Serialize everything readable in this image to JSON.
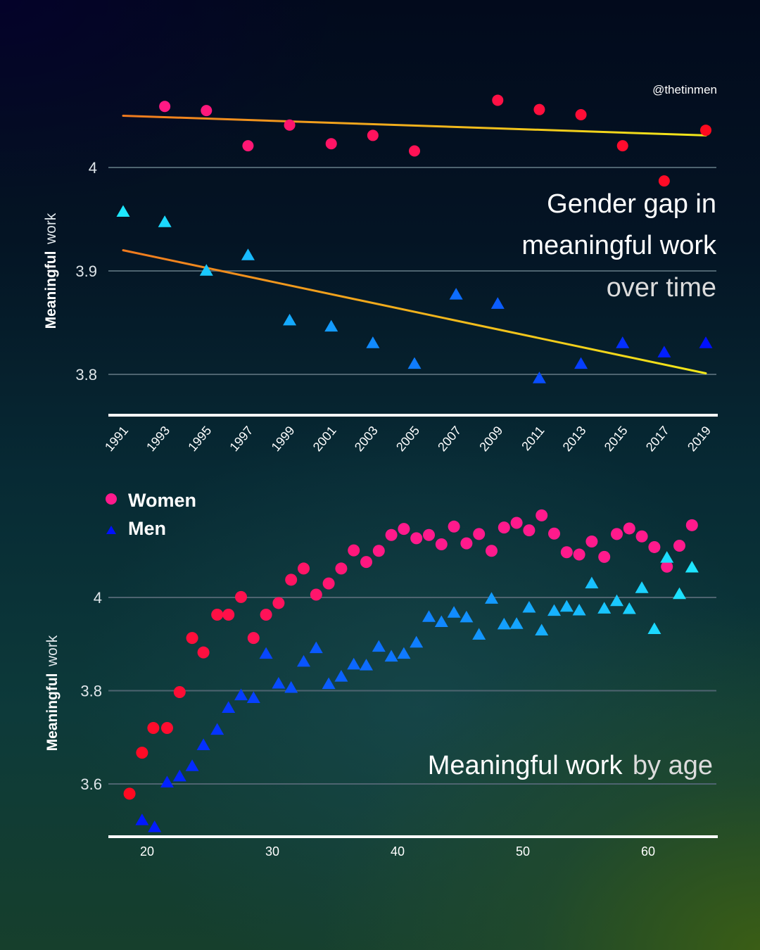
{
  "watermark": "@thetinmen",
  "colors": {
    "women_start": "#ff1a8c",
    "women_end": "#ff0a1e",
    "men_light": "#1ee8ff",
    "men_dark": "#0010ff",
    "trend_start": "#f07a1e",
    "trend_end": "#f2e81a",
    "grid": "#4e6470",
    "axis": "#ffffff"
  },
  "chart_data": [
    {
      "type": "scatter",
      "title": "Gender gap in meaningful work",
      "subtitle": "over time",
      "title_lines": [
        "Gender gap in",
        "meaningful work",
        "over time"
      ],
      "xlabel": "",
      "ylabel": "Meaningful work",
      "ylabel_parts": [
        "Meaningful",
        "work"
      ],
      "xlim": [
        1990.4,
        2019.6
      ],
      "ylim": [
        3.76,
        4.1
      ],
      "yticks": [
        3.8,
        3.9,
        4
      ],
      "ytick_labels": [
        "3.8",
        "3.9",
        "4"
      ],
      "xticks": [
        1991,
        1993,
        1995,
        1997,
        1999,
        2001,
        2003,
        2005,
        2007,
        2009,
        2011,
        2013,
        2015,
        2017,
        2019
      ],
      "xtick_labels": [
        "1991",
        "1993",
        "1995",
        "1997",
        "1999",
        "2001",
        "2003",
        "2005",
        "2007",
        "2009",
        "2011",
        "2013",
        "2015",
        "2017",
        "2019"
      ],
      "grid": true,
      "series": [
        {
          "name": "Women",
          "marker": "circle",
          "x": [
            1993,
            1995,
            1997,
            1999,
            2001,
            2003,
            2005,
            2009,
            2011,
            2013,
            2015,
            2017,
            2019
          ],
          "y": [
            4.059,
            4.055,
            4.021,
            4.041,
            4.023,
            4.031,
            4.016,
            4.065,
            4.056,
            4.051,
            4.021,
            3.987,
            4.036
          ]
        },
        {
          "name": "Men",
          "marker": "triangle",
          "x": [
            1991,
            1993,
            1995,
            1997,
            1999,
            2001,
            2003,
            2005,
            2007,
            2009,
            2011,
            2013,
            2015,
            2017,
            2019
          ],
          "y": [
            3.958,
            3.948,
            3.901,
            3.916,
            3.853,
            3.847,
            3.831,
            3.811,
            3.878,
            3.869,
            3.797,
            3.811,
            3.831,
            3.822,
            3.831
          ]
        }
      ],
      "trendlines": [
        {
          "name": "Women trend",
          "x": [
            1991,
            2019
          ],
          "y": [
            4.05,
            4.031
          ]
        },
        {
          "name": "Men trend",
          "x": [
            1991,
            2019
          ],
          "y": [
            3.92,
            3.801
          ]
        }
      ]
    },
    {
      "type": "scatter",
      "title": "Meaningful work",
      "subtitle": "by age",
      "xlabel": "",
      "ylabel": "Meaningful work",
      "ylabel_parts": [
        "Meaningful",
        "work"
      ],
      "xlim": [
        17.5,
        66.5
      ],
      "ylim": [
        3.49,
        4.2
      ],
      "yticks": [
        3.6,
        3.8,
        4
      ],
      "ytick_labels": [
        "3.6",
        "3.8",
        "4"
      ],
      "xticks": [
        20,
        30,
        40,
        50,
        60
      ],
      "xtick_labels": [
        "20",
        "30",
        "40",
        "50",
        "60"
      ],
      "grid": true,
      "legend": {
        "position": "top-left",
        "entries": [
          "Women",
          "Men"
        ]
      },
      "series": [
        {
          "name": "Women",
          "marker": "circle",
          "x": [
            18.6,
            19.6,
            20.5,
            21.6,
            22.6,
            23.6,
            24.5,
            25.6,
            26.5,
            27.5,
            28.5,
            29.5,
            30.5,
            31.5,
            32.5,
            33.5,
            34.5,
            35.5,
            36.5,
            37.5,
            38.5,
            39.5,
            40.5,
            41.5,
            42.5,
            43.5,
            44.5,
            45.5,
            46.5,
            47.5,
            48.5,
            49.5,
            50.5,
            51.5,
            52.5,
            53.5,
            54.5,
            55.5,
            56.5,
            57.5,
            58.5,
            59.5,
            60.5,
            61.5,
            62.5,
            63.5
          ],
          "y": [
            3.579,
            3.667,
            3.72,
            3.72,
            3.797,
            3.913,
            3.882,
            3.963,
            3.963,
            4.001,
            3.913,
            3.963,
            3.988,
            4.038,
            4.062,
            4.006,
            4.03,
            4.062,
            4.101,
            4.076,
            4.1,
            4.134,
            4.147,
            4.127,
            4.134,
            4.114,
            4.152,
            4.116,
            4.136,
            4.1,
            4.15,
            4.16,
            4.144,
            4.176,
            4.137,
            4.097,
            4.092,
            4.12,
            4.087,
            4.136,
            4.148,
            4.131,
            4.108,
            4.066,
            4.111,
            4.155
          ]
        },
        {
          "name": "Men",
          "marker": "triangle",
          "x": [
            19.6,
            20.6,
            21.6,
            22.6,
            23.6,
            24.5,
            25.6,
            26.5,
            27.5,
            28.5,
            29.5,
            30.5,
            31.5,
            32.5,
            33.5,
            34.5,
            35.5,
            36.5,
            37.5,
            38.5,
            39.5,
            40.5,
            41.5,
            42.5,
            43.5,
            44.5,
            45.5,
            46.5,
            47.5,
            48.5,
            49.5,
            50.5,
            51.5,
            52.5,
            53.5,
            54.5,
            55.5,
            56.5,
            57.5,
            58.5,
            59.5,
            60.5,
            61.5,
            62.5,
            63.5
          ],
          "y": [
            3.524,
            3.509,
            3.605,
            3.618,
            3.64,
            3.685,
            3.718,
            3.765,
            3.792,
            3.786,
            3.881,
            3.817,
            3.808,
            3.864,
            3.893,
            3.816,
            3.832,
            3.858,
            3.856,
            3.896,
            3.875,
            3.881,
            3.905,
            3.96,
            3.949,
            3.969,
            3.959,
            3.922,
            3.999,
            3.944,
            3.945,
            3.98,
            3.931,
            3.973,
            3.982,
            3.974,
            4.032,
            3.978,
            3.994,
            3.977,
            4.022,
            3.934,
            4.087,
            4.009,
            4.066
          ]
        }
      ]
    }
  ]
}
